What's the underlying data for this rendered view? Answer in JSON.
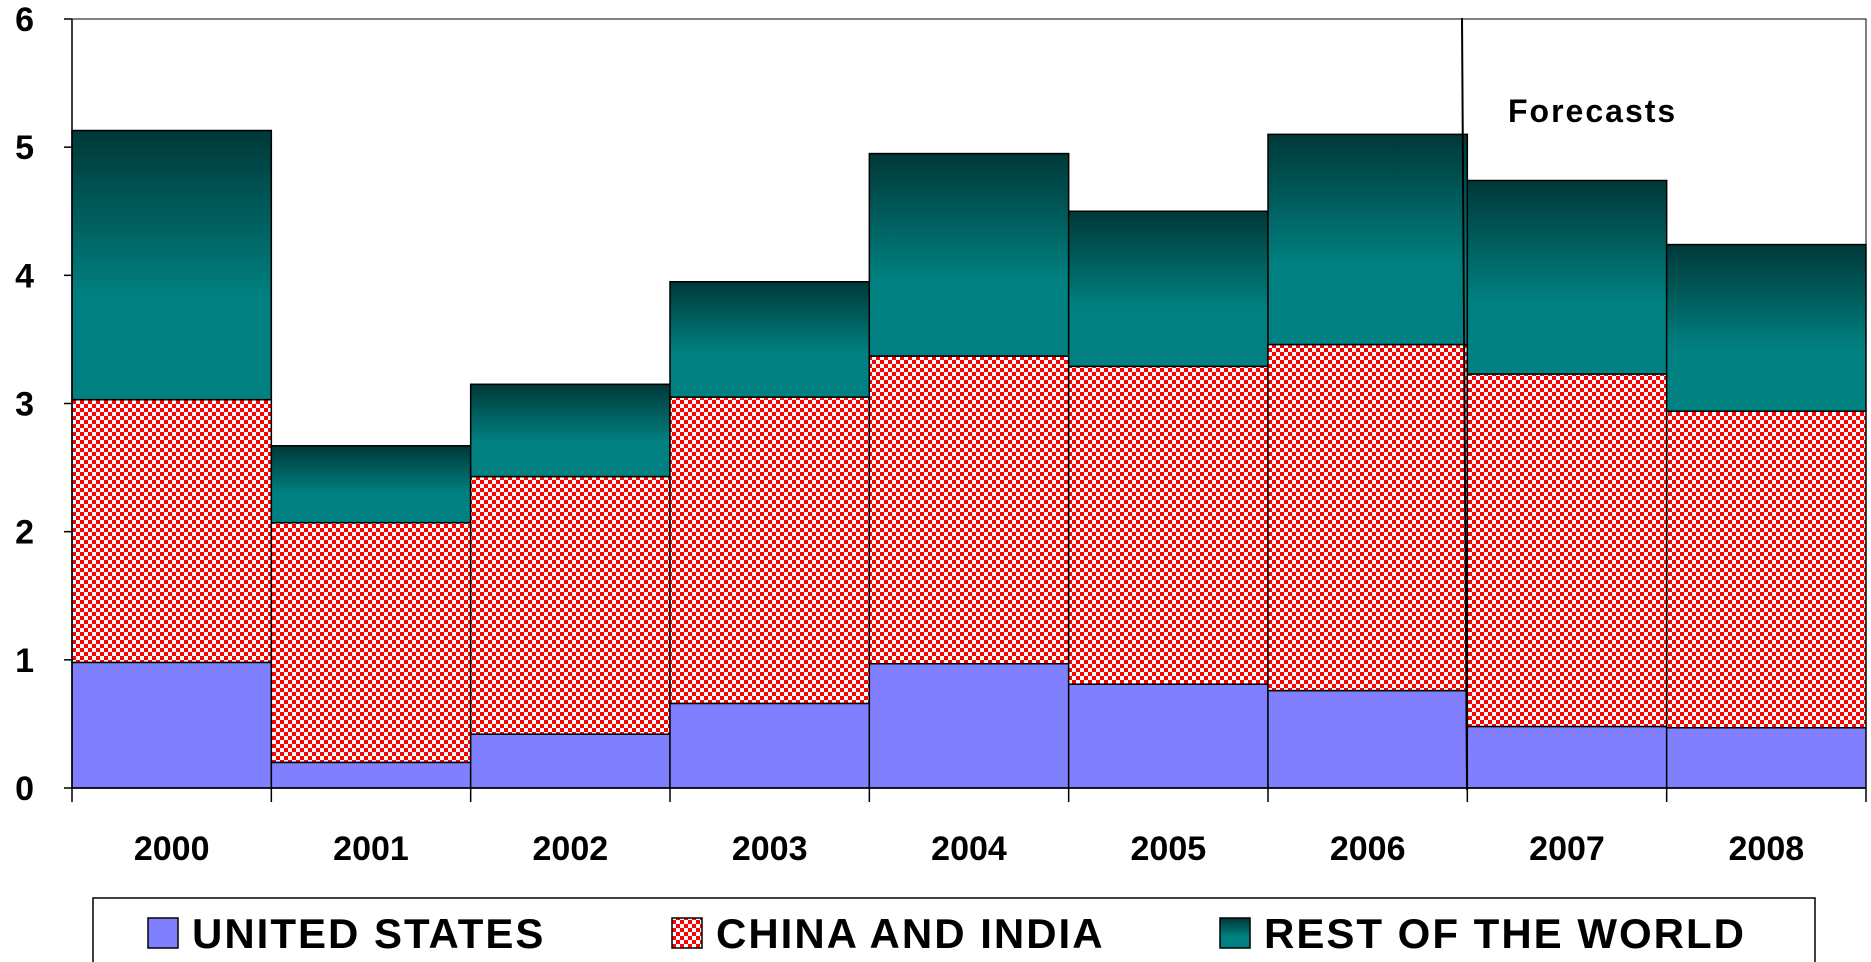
{
  "chart_data": {
    "type": "bar",
    "stacked": true,
    "categories": [
      "2000",
      "2001",
      "2002",
      "2003",
      "2004",
      "2005",
      "2006",
      "2007",
      "2008"
    ],
    "series": [
      {
        "name": "UNITED STATES",
        "values": [
          0.98,
          0.2,
          0.42,
          0.66,
          0.97,
          0.81,
          0.76,
          0.48,
          0.47
        ],
        "color": "#8080ff"
      },
      {
        "name": "CHINA AND INDIA",
        "values": [
          2.05,
          1.87,
          2.01,
          2.39,
          2.4,
          2.48,
          2.7,
          2.75,
          2.47
        ],
        "color": "#ff0000"
      },
      {
        "name": "REST OF THE WORLD",
        "values": [
          2.1,
          0.6,
          0.72,
          0.9,
          1.58,
          1.21,
          1.64,
          1.51,
          1.3
        ],
        "color": "#008080"
      }
    ],
    "ylim": [
      0,
      6
    ],
    "yticks": [
      0,
      1,
      2,
      3,
      4,
      5,
      6
    ],
    "xlabel": "",
    "ylabel": "",
    "annotation": "Forecasts",
    "legend_position": "bottom",
    "grid": false
  }
}
